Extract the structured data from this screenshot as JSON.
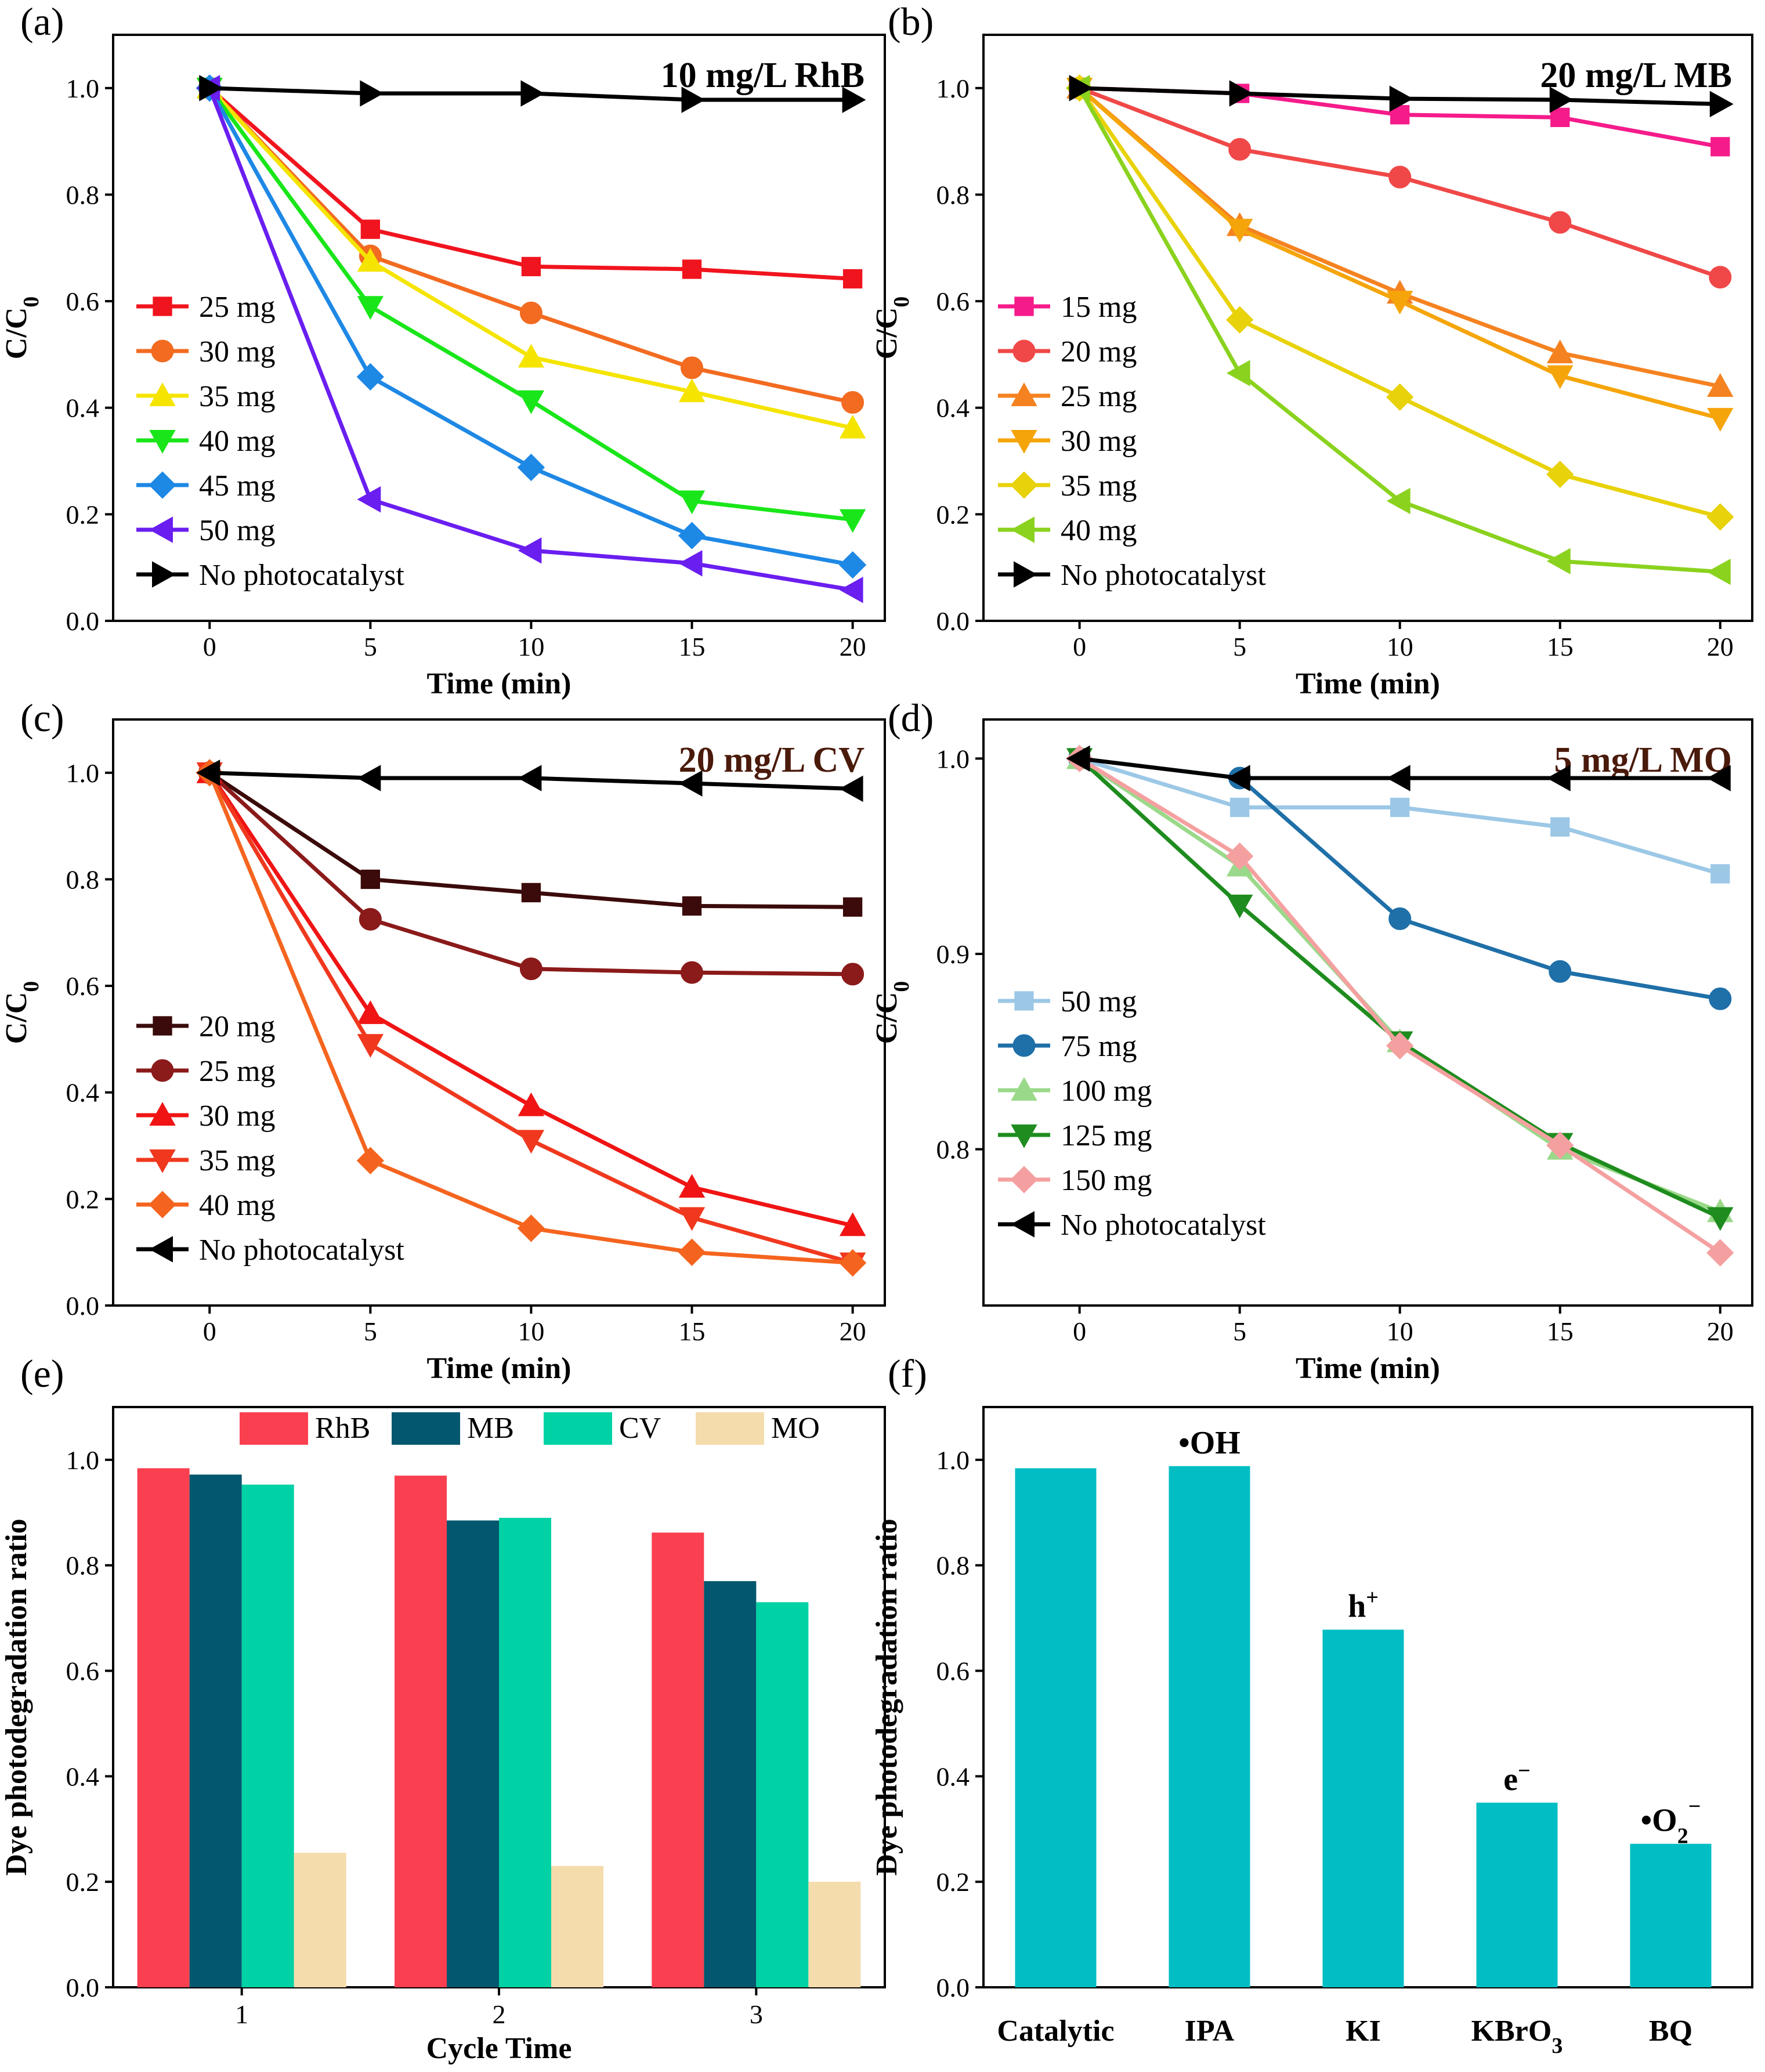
{
  "chart_data": [
    {
      "id": "a",
      "panel_label": "(a)",
      "type": "line",
      "title": "10 mg/L RhB",
      "xlabel": "Time (min)",
      "ylabel": "C/C",
      "ylabel_sub": "0",
      "x": [
        0,
        5,
        10,
        15,
        20
      ],
      "xlim": [
        -3,
        21
      ],
      "ylim": [
        0.0,
        1.1
      ],
      "xticks": [
        "0",
        "5",
        "10",
        "15",
        "20"
      ],
      "yticks": [
        "0.0",
        "0.2",
        "0.4",
        "0.6",
        "0.8",
        "1.0"
      ],
      "ytick_values": [
        0.0,
        0.2,
        0.4,
        0.6,
        0.8,
        1.0
      ],
      "legend_position": "left",
      "series": [
        {
          "name": "25 mg",
          "color": "#f0141e",
          "marker": "square",
          "values": [
            1.0,
            0.735,
            0.665,
            0.66,
            0.642
          ]
        },
        {
          "name": "30 mg",
          "color": "#f26b21",
          "marker": "circle",
          "values": [
            1.0,
            0.685,
            0.578,
            0.475,
            0.41
          ]
        },
        {
          "name": "35 mg",
          "color": "#f5e400",
          "marker": "triangle-up",
          "values": [
            1.0,
            0.675,
            0.495,
            0.43,
            0.362
          ]
        },
        {
          "name": "40 mg",
          "color": "#19e619",
          "marker": "triangle-down",
          "values": [
            1.0,
            0.59,
            0.413,
            0.225,
            0.19
          ]
        },
        {
          "name": "45 mg",
          "color": "#1e88e5",
          "marker": "diamond",
          "values": [
            1.0,
            0.458,
            0.288,
            0.16,
            0.105
          ]
        },
        {
          "name": "50 mg",
          "color": "#6a1ef0",
          "marker": "triangle-left",
          "values": [
            1.0,
            0.228,
            0.132,
            0.108,
            0.058
          ]
        },
        {
          "name": "No photocatalyst",
          "color": "#000000",
          "marker": "triangle-right",
          "values": [
            1.0,
            0.99,
            0.99,
            0.978,
            0.978
          ]
        }
      ]
    },
    {
      "id": "b",
      "panel_label": "(b)",
      "type": "line",
      "title": "20 mg/L MB",
      "xlabel": "Time (min)",
      "ylabel": "C/C",
      "ylabel_sub": "0",
      "x": [
        0,
        5,
        10,
        15,
        20
      ],
      "xlim": [
        -3,
        21
      ],
      "ylim": [
        0.0,
        1.1
      ],
      "xticks": [
        "0",
        "5",
        "10",
        "15",
        "20"
      ],
      "yticks": [
        "0.0",
        "0.2",
        "0.4",
        "0.6",
        "0.8",
        "1.0"
      ],
      "ytick_values": [
        0.0,
        0.2,
        0.4,
        0.6,
        0.8,
        1.0
      ],
      "legend_position": "left",
      "series": [
        {
          "name": "15 mg",
          "color": "#f51b8a",
          "marker": "square",
          "values": [
            1.0,
            0.99,
            0.95,
            0.945,
            0.89
          ]
        },
        {
          "name": "20 mg",
          "color": "#f04848",
          "marker": "circle",
          "values": [
            1.0,
            0.885,
            0.833,
            0.748,
            0.645
          ]
        },
        {
          "name": "25 mg",
          "color": "#f58220",
          "marker": "triangle-up",
          "values": [
            1.0,
            0.742,
            0.615,
            0.503,
            0.44
          ]
        },
        {
          "name": "30 mg",
          "color": "#f5a50a",
          "marker": "triangle-down",
          "values": [
            1.0,
            0.735,
            0.6,
            0.46,
            0.38
          ]
        },
        {
          "name": "35 mg",
          "color": "#e8d20a",
          "marker": "diamond",
          "values": [
            1.0,
            0.565,
            0.42,
            0.275,
            0.195
          ]
        },
        {
          "name": "40 mg",
          "color": "#8ad21e",
          "marker": "triangle-left",
          "values": [
            1.0,
            0.465,
            0.225,
            0.112,
            0.092
          ]
        },
        {
          "name": "No photocatalyst",
          "color": "#000000",
          "marker": "triangle-right",
          "values": [
            1.0,
            0.99,
            0.98,
            0.978,
            0.97
          ]
        }
      ]
    },
    {
      "id": "c",
      "panel_label": "(c)",
      "type": "line",
      "title": "20 mg/L CV",
      "title_color": "#4a1a0a",
      "xlabel": "Time (min)",
      "ylabel": "C/C",
      "ylabel_sub": "0",
      "x": [
        0,
        5,
        10,
        15,
        20
      ],
      "xlim": [
        -3,
        21
      ],
      "ylim": [
        0.0,
        1.1
      ],
      "xticks": [
        "0",
        "5",
        "10",
        "15",
        "20"
      ],
      "yticks": [
        "0.0",
        "0.2",
        "0.4",
        "0.6",
        "0.8",
        "1.0"
      ],
      "ytick_values": [
        0.0,
        0.2,
        0.4,
        0.6,
        0.8,
        1.0
      ],
      "legend_position": "left",
      "series": [
        {
          "name": "20 mg",
          "color": "#3b0a0a",
          "marker": "square",
          "values": [
            1.0,
            0.8,
            0.775,
            0.75,
            0.748
          ]
        },
        {
          "name": "25 mg",
          "color": "#8b1a1a",
          "marker": "circle",
          "values": [
            1.0,
            0.725,
            0.632,
            0.625,
            0.622
          ]
        },
        {
          "name": "30 mg",
          "color": "#f01414",
          "marker": "triangle-up",
          "values": [
            1.0,
            0.548,
            0.375,
            0.222,
            0.15
          ]
        },
        {
          "name": "35 mg",
          "color": "#f0381e",
          "marker": "triangle-down",
          "values": [
            1.0,
            0.49,
            0.31,
            0.165,
            0.08
          ]
        },
        {
          "name": "40 mg",
          "color": "#f5641e",
          "marker": "diamond",
          "values": [
            1.0,
            0.272,
            0.145,
            0.1,
            0.08
          ]
        },
        {
          "name": "No photocatalyst",
          "color": "#000000",
          "marker": "triangle-left",
          "values": [
            1.0,
            0.99,
            0.99,
            0.98,
            0.97
          ]
        }
      ]
    },
    {
      "id": "d",
      "panel_label": "(d)",
      "type": "line",
      "title": "5 mg/L MO",
      "title_color": "#4a1a0a",
      "xlabel": "Time (min)",
      "ylabel": "C/C",
      "ylabel_sub": "0",
      "x": [
        0,
        5,
        10,
        15,
        20
      ],
      "xlim": [
        -3,
        21
      ],
      "ylim": [
        0.72,
        1.02
      ],
      "xticks": [
        "0",
        "5",
        "10",
        "15",
        "20"
      ],
      "yticks": [
        "0.8",
        "0.9",
        "1.0"
      ],
      "ytick_values": [
        0.8,
        0.9,
        1.0
      ],
      "legend_position": "left",
      "series": [
        {
          "name": "50 mg",
          "color": "#9cc8e6",
          "marker": "square",
          "values": [
            1.0,
            0.975,
            0.975,
            0.965,
            0.941
          ]
        },
        {
          "name": "75 mg",
          "color": "#1f6fa8",
          "marker": "circle",
          "values": [
            1.0,
            0.99,
            0.918,
            0.891,
            0.877
          ]
        },
        {
          "name": "100 mg",
          "color": "#9ad98a",
          "marker": "triangle-up",
          "values": [
            1.0,
            0.945,
            0.855,
            0.8,
            0.768
          ]
        },
        {
          "name": "125 mg",
          "color": "#1e8c1e",
          "marker": "triangle-down",
          "values": [
            1.0,
            0.925,
            0.855,
            0.803,
            0.765
          ]
        },
        {
          "name": "150 mg",
          "color": "#f5a0a0",
          "marker": "diamond",
          "values": [
            1.0,
            0.95,
            0.853,
            0.802,
            0.747
          ]
        },
        {
          "name": "No photocatalyst",
          "color": "#000000",
          "marker": "triangle-left",
          "values": [
            1.0,
            0.99,
            0.99,
            0.99,
            0.99
          ]
        }
      ]
    },
    {
      "id": "e",
      "panel_label": "(e)",
      "type": "bar",
      "xlabel": "Cycle Time",
      "ylabel": "Dye photodegradation ratio",
      "categories": [
        "1",
        "2",
        "3"
      ],
      "ylim": [
        0.0,
        1.1
      ],
      "yticks": [
        "0.0",
        "0.2",
        "0.4",
        "0.6",
        "0.8",
        "1.0"
      ],
      "ytick_values": [
        0.0,
        0.2,
        0.4,
        0.6,
        0.8,
        1.0
      ],
      "legend_position": "top",
      "series": [
        {
          "name": "RhB",
          "color": "#fa3f50",
          "values": [
            0.984,
            0.97,
            0.862
          ]
        },
        {
          "name": "MB",
          "color": "#03576e",
          "values": [
            0.972,
            0.885,
            0.77
          ]
        },
        {
          "name": "CV",
          "color": "#00d2a5",
          "values": [
            0.953,
            0.89,
            0.73
          ]
        },
        {
          "name": "MO",
          "color": "#f5dcac",
          "values": [
            0.255,
            0.23,
            0.2
          ]
        }
      ]
    },
    {
      "id": "f",
      "panel_label": "(f)",
      "type": "bar",
      "ylabel": "Dye photodegradation ratio",
      "categories": [
        "Catalytic",
        "IPA",
        "KI",
        "KBrO",
        "BQ"
      ],
      "category_subscripts": [
        "",
        "",
        "",
        "3",
        ""
      ],
      "ylim": [
        0.0,
        1.1
      ],
      "yticks": [
        "0.0",
        "0.2",
        "0.4",
        "0.6",
        "0.8",
        "1.0"
      ],
      "ytick_values": [
        0.0,
        0.2,
        0.4,
        0.6,
        0.8,
        1.0
      ],
      "color": "#00bec4",
      "values": [
        0.984,
        0.988,
        0.678,
        0.35,
        0.272
      ],
      "annotations": [
        {
          "index": 1,
          "base": "•OH",
          "sup": ""
        },
        {
          "index": 2,
          "base": "h",
          "sup": "+"
        },
        {
          "index": 3,
          "base": "e",
          "sup": "−"
        },
        {
          "index": 4,
          "base": "•O",
          "sub": "2",
          "sup": "−"
        }
      ]
    }
  ]
}
